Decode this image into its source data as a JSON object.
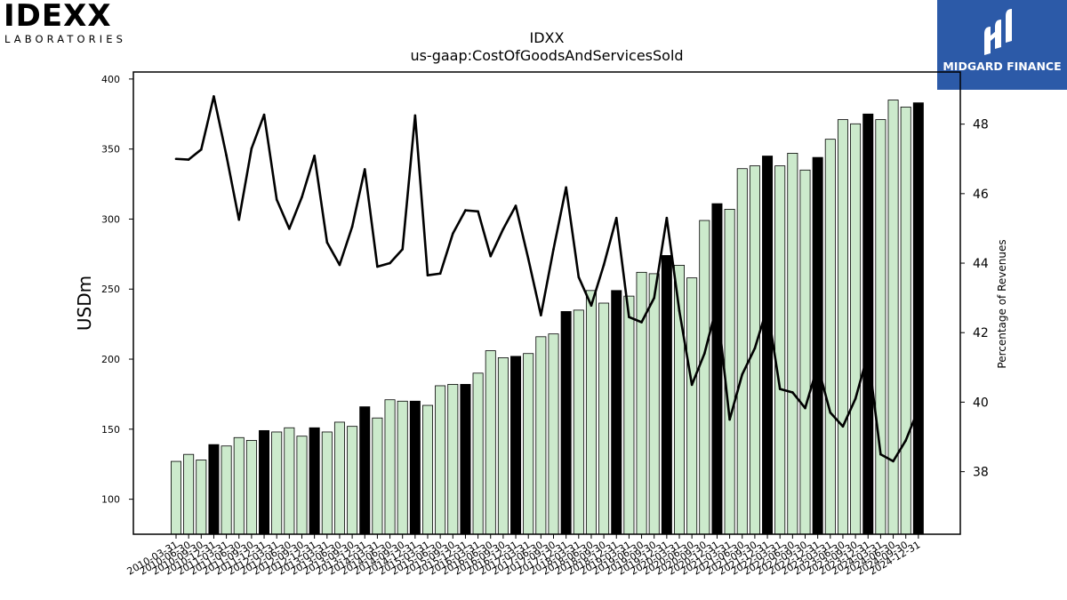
{
  "header": {
    "company_logo": {
      "name": "IDEXX",
      "sub": "LABORATORIES"
    },
    "brand_logo": {
      "name": "MIDGARD FINANCE"
    }
  },
  "chart_data": {
    "type": "bar",
    "title": "IDXX",
    "subtitle": "us-gaap:CostOfGoodsAndServicesSold",
    "ylabel": "USDm",
    "y2label": "Percentage of Revenues",
    "ylim": [
      75,
      405
    ],
    "y2lim": [
      36.2,
      49.5
    ],
    "yticks": [
      100,
      150,
      200,
      250,
      300,
      350,
      400
    ],
    "y2ticks": [
      38,
      40,
      42,
      44,
      46,
      48
    ],
    "categories": [
      "2010-03-31",
      "2010-06-30",
      "2010-09-30",
      "2010-12-31",
      "2011-03-31",
      "2011-06-30",
      "2011-09-30",
      "2011-12-31",
      "2012-03-31",
      "2012-06-30",
      "2012-09-30",
      "2012-12-31",
      "2013-03-31",
      "2013-06-30",
      "2013-09-30",
      "2013-12-31",
      "2014-03-31",
      "2014-06-30",
      "2014-09-30",
      "2014-12-31",
      "2015-03-31",
      "2015-06-30",
      "2015-09-30",
      "2015-12-31",
      "2016-03-31",
      "2016-06-30",
      "2016-09-30",
      "2016-12-31",
      "2017-03-31",
      "2017-06-30",
      "2017-09-30",
      "2017-12-31",
      "2018-03-31",
      "2018-06-30",
      "2018-09-30",
      "2018-12-31",
      "2019-03-31",
      "2019-06-30",
      "2019-09-30",
      "2019-12-31",
      "2020-03-31",
      "2020-06-30",
      "2020-09-30",
      "2020-12-31",
      "2021-03-31",
      "2021-06-30",
      "2021-09-30",
      "2021-12-31",
      "2022-03-31",
      "2022-06-30",
      "2022-09-30",
      "2022-12-31",
      "2023-03-31",
      "2023-06-30",
      "2023-09-30",
      "2023-12-31",
      "2024-03-31",
      "2024-06-30",
      "2024-09-30",
      "2024-12-31"
    ],
    "series": [
      {
        "type": "bar",
        "axis": "left",
        "values": [
          127,
          132,
          128,
          139,
          138,
          144,
          142,
          149,
          148,
          151,
          145,
          151,
          148,
          155,
          152,
          166,
          158,
          171,
          170,
          170,
          167,
          181,
          182,
          182,
          190,
          206,
          201,
          202,
          204,
          216,
          218,
          234,
          235,
          249,
          240,
          249,
          245,
          262,
          261,
          274,
          267,
          258,
          299,
          311,
          307,
          336,
          338,
          345,
          338,
          347,
          335,
          344,
          357,
          371,
          368,
          375,
          371,
          385,
          380,
          383
        ],
        "highlight": [
          3,
          7,
          11,
          15,
          19,
          23,
          27,
          31,
          35,
          39,
          43,
          47,
          51,
          55,
          59
        ],
        "colors": {
          "fill": "#cceacc",
          "highlight": "#000000",
          "stroke": "#000000"
        }
      },
      {
        "type": "line",
        "axis": "right",
        "values": [
          47.0,
          46.98,
          47.27,
          48.8,
          47.1,
          45.25,
          47.3,
          48.27,
          45.83,
          44.99,
          45.9,
          47.09,
          44.6,
          43.95,
          45.05,
          46.7,
          43.9,
          44.0,
          44.4,
          48.25,
          43.65,
          43.7,
          44.85,
          45.52,
          45.49,
          44.2,
          44.98,
          45.65,
          44.12,
          42.5,
          44.4,
          46.18,
          43.6,
          42.78,
          43.95,
          45.3,
          42.45,
          42.3,
          43.0,
          45.3,
          42.63,
          40.5,
          41.4,
          42.8,
          39.5,
          40.8,
          41.55,
          42.73,
          40.38,
          40.28,
          39.83,
          41.05,
          39.7,
          39.3,
          40.1,
          41.4,
          38.5,
          38.3,
          38.9,
          39.8
        ],
        "color": "#000000"
      }
    ],
    "grid": false,
    "legend": "none"
  }
}
